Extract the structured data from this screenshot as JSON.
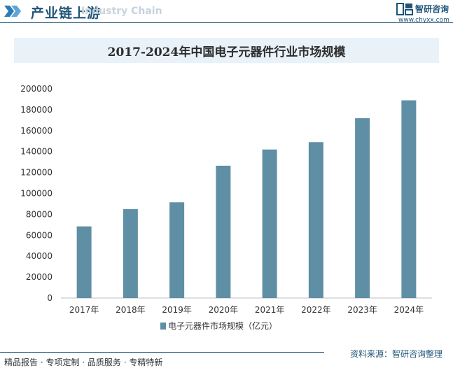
{
  "header": {
    "title": "产业链上游",
    "subtitle": "Industry Chain",
    "logo_name": "智研咨询",
    "logo_url": "www.chyxx.com"
  },
  "colors": {
    "bar": "#5e8fa5",
    "brand": "#1f5478",
    "title_band": "#e9f2f8"
  },
  "chart_data": {
    "type": "bar",
    "title": "2017-2024年中国电子元器件行业市场规模",
    "categories": [
      "2017年",
      "2018年",
      "2019年",
      "2020年",
      "2021年",
      "2022年",
      "2023年",
      "2024年"
    ],
    "series": [
      {
        "name": "电子元器件市场规模（亿元）",
        "values": [
          68500,
          85000,
          91500,
          126500,
          142000,
          149000,
          172000,
          189000
        ]
      }
    ],
    "yticks": [
      0,
      20000,
      40000,
      60000,
      80000,
      100000,
      120000,
      140000,
      160000,
      180000,
      200000
    ],
    "ylim": [
      0,
      200000
    ],
    "xlabel": "",
    "ylabel": "",
    "grid": false,
    "legend_position": "bottom"
  },
  "footer": {
    "left_text": "精品报告 · 专项定制 · 品质服务 · 专精特新",
    "source_text": "资料来源：智研咨询整理"
  }
}
